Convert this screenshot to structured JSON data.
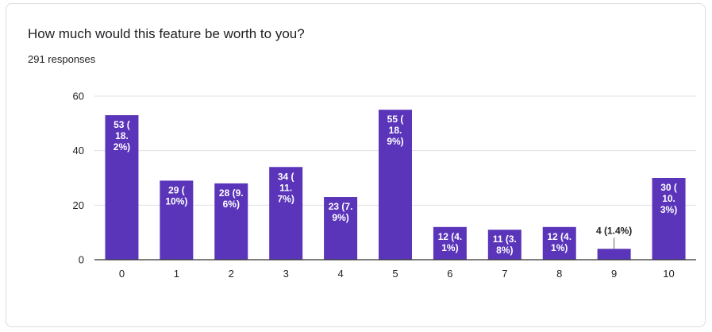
{
  "card": {
    "title": "How much would this feature be worth to you?",
    "responses": "291 responses"
  },
  "colors": {
    "bar": "#5a35b9",
    "grid": "#e0e0e0",
    "axis": "#333333",
    "label_inside": "#ffffff",
    "label_outside": "#222222"
  },
  "chart_data": {
    "type": "bar",
    "categories": [
      "0",
      "1",
      "2",
      "3",
      "4",
      "5",
      "6",
      "7",
      "8",
      "9",
      "10"
    ],
    "values": [
      53,
      29,
      28,
      34,
      23,
      55,
      12,
      11,
      12,
      4,
      30
    ],
    "data_labels": [
      [
        "53 (",
        "18.",
        "2%)"
      ],
      [
        "29 (",
        "10%)"
      ],
      [
        "28 (9.",
        "6%)"
      ],
      [
        "34 (",
        "11.",
        "7%)"
      ],
      [
        "23 (7.",
        "9%)"
      ],
      [
        "55 (",
        "18.",
        "9%)"
      ],
      [
        "12 (4.",
        "1%)"
      ],
      [
        "11 (3.",
        "8%)"
      ],
      [
        "12 (4.",
        "1%)"
      ],
      [
        "4 (1.4%)"
      ],
      [
        "30 (",
        "10.",
        "3%)"
      ]
    ],
    "outside_labels": [
      9
    ],
    "yticks": [
      0,
      20,
      40,
      60
    ],
    "ylim": [
      0,
      60
    ],
    "grid": true,
    "legend": "none"
  }
}
